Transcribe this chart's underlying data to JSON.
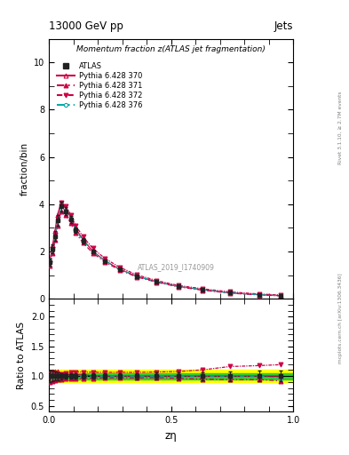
{
  "title_top": "13000 GeV pp",
  "title_right": "Jets",
  "main_ylabel": "fraction/bin",
  "ratio_ylabel": "Ratio to ATLAS",
  "xlabel": "zη",
  "watermark": "ATLAS_2019_I1740909",
  "right_label_top": "Rivet 3.1.10, ≥ 2.7M events",
  "right_label_bottom": "mcplots.cern.ch [arXiv:1306.3436]",
  "subtitle": "Momentum fraction z(ATLAS jet fragmentation)",
  "main_ylim": [
    0,
    11
  ],
  "ratio_ylim": [
    0.4,
    2.3
  ],
  "main_yticks": [
    0,
    2,
    4,
    6,
    8,
    10
  ],
  "ratio_yticks": [
    0.5,
    1.0,
    1.5,
    2.0
  ],
  "xlim": [
    0,
    1
  ],
  "xticks": [
    0.0,
    0.5,
    1.0
  ],
  "atlas_x": [
    0.005,
    0.015,
    0.025,
    0.035,
    0.05,
    0.07,
    0.09,
    0.11,
    0.14,
    0.18,
    0.23,
    0.29,
    0.36,
    0.44,
    0.53,
    0.63,
    0.74,
    0.86,
    0.95
  ],
  "atlas_y": [
    1.55,
    2.1,
    2.65,
    3.3,
    3.9,
    3.7,
    3.35,
    2.9,
    2.45,
    2.0,
    1.6,
    1.25,
    0.95,
    0.72,
    0.52,
    0.38,
    0.25,
    0.17,
    0.13
  ],
  "atlas_yerr": [
    0.15,
    0.18,
    0.2,
    0.22,
    0.2,
    0.18,
    0.15,
    0.13,
    0.11,
    0.09,
    0.07,
    0.06,
    0.05,
    0.04,
    0.03,
    0.025,
    0.02,
    0.015,
    0.012
  ],
  "py370_x": [
    0.005,
    0.015,
    0.025,
    0.035,
    0.05,
    0.07,
    0.09,
    0.11,
    0.14,
    0.18,
    0.23,
    0.29,
    0.36,
    0.44,
    0.53,
    0.63,
    0.74,
    0.86,
    0.95
  ],
  "py370_y": [
    1.65,
    2.25,
    2.85,
    3.55,
    4.05,
    3.82,
    3.42,
    2.96,
    2.5,
    2.01,
    1.6,
    1.25,
    0.95,
    0.72,
    0.52,
    0.38,
    0.25,
    0.17,
    0.13
  ],
  "py370_ratio": [
    1.06,
    1.07,
    1.08,
    1.08,
    1.04,
    1.03,
    1.02,
    1.02,
    1.02,
    1.005,
    1.0,
    1.0,
    1.0,
    1.0,
    1.0,
    1.0,
    1.0,
    1.0,
    1.0
  ],
  "py371_x": [
    0.005,
    0.015,
    0.025,
    0.035,
    0.05,
    0.07,
    0.09,
    0.11,
    0.14,
    0.18,
    0.23,
    0.29,
    0.36,
    0.44,
    0.53,
    0.63,
    0.74,
    0.86,
    0.95
  ],
  "py371_y": [
    1.4,
    1.92,
    2.48,
    3.1,
    3.68,
    3.52,
    3.2,
    2.78,
    2.36,
    1.93,
    1.55,
    1.21,
    0.92,
    0.7,
    0.5,
    0.36,
    0.235,
    0.16,
    0.12
  ],
  "py371_ratio": [
    0.9,
    0.915,
    0.935,
    0.94,
    0.943,
    0.952,
    0.955,
    0.958,
    0.963,
    0.965,
    0.97,
    0.968,
    0.968,
    0.972,
    0.962,
    0.947,
    0.94,
    0.94,
    0.92
  ],
  "py372_x": [
    0.005,
    0.015,
    0.025,
    0.035,
    0.05,
    0.07,
    0.09,
    0.11,
    0.14,
    0.18,
    0.23,
    0.29,
    0.36,
    0.44,
    0.53,
    0.63,
    0.74,
    0.86,
    0.95
  ],
  "py372_y": [
    1.5,
    2.1,
    2.7,
    3.4,
    4.05,
    3.9,
    3.55,
    3.1,
    2.62,
    2.13,
    1.7,
    1.33,
    1.01,
    0.77,
    0.56,
    0.42,
    0.29,
    0.2,
    0.155
  ],
  "py372_ratio": [
    0.97,
    1.0,
    1.02,
    1.03,
    1.038,
    1.054,
    1.06,
    1.069,
    1.069,
    1.065,
    1.063,
    1.064,
    1.063,
    1.069,
    1.077,
    1.105,
    1.16,
    1.176,
    1.192
  ],
  "py376_x": [
    0.005,
    0.015,
    0.025,
    0.035,
    0.05,
    0.07,
    0.09,
    0.11,
    0.14,
    0.18,
    0.23,
    0.29,
    0.36,
    0.44,
    0.53,
    0.63,
    0.74,
    0.86,
    0.95
  ],
  "py376_y": [
    1.55,
    2.1,
    2.65,
    3.3,
    3.9,
    3.7,
    3.35,
    2.9,
    2.45,
    2.0,
    1.6,
    1.25,
    0.95,
    0.72,
    0.52,
    0.38,
    0.25,
    0.17,
    0.125
  ],
  "py376_ratio": [
    1.0,
    1.0,
    1.0,
    1.0,
    1.0,
    1.0,
    1.0,
    1.0,
    1.0,
    1.0,
    1.0,
    1.0,
    1.0,
    1.0,
    1.0,
    1.0,
    1.0,
    1.0,
    0.962
  ],
  "color_atlas": "#222222",
  "color_py370": "#cc0044",
  "color_py371": "#cc0044",
  "color_py372": "#cc0044",
  "color_py376": "#00aaaa",
  "green_band": 0.05,
  "yellow_band": 0.1
}
